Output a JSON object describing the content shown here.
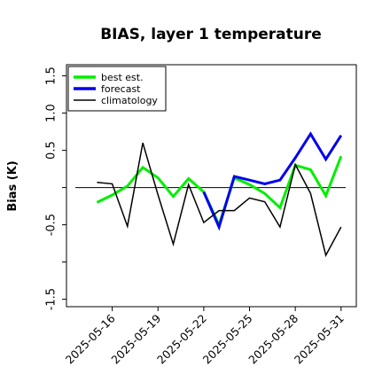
{
  "chart_data": {
    "type": "line",
    "title": "BIAS, layer 1 temperature",
    "xlabel": "",
    "ylabel": "Bias (K)",
    "ylim": [
      -1.6,
      1.65
    ],
    "xlim": [
      "2025-05-13",
      "2025-06-01"
    ],
    "yticks": [
      -1.5,
      -1.0,
      -0.5,
      0.0,
      0.5,
      1.0,
      1.5
    ],
    "ytick_labels": [
      "-1.5",
      "",
      "-0.5",
      "",
      "0.5",
      "1.0",
      "1.5"
    ],
    "xticks": [
      "2025-05-16",
      "2025-05-19",
      "2025-05-22",
      "2025-05-25",
      "2025-05-28",
      "2025-05-31"
    ],
    "xtick_colors": [
      "#000000",
      "#000000",
      "#228b22",
      "#000000",
      "#000000",
      "#000000"
    ],
    "zero_line": 0.0,
    "grid": false,
    "legend_position": "top-left",
    "series": [
      {
        "name": "best est.",
        "color": "#00ee00",
        "width": 3,
        "x": [
          "2025-05-15",
          "2025-05-16",
          "2025-05-17",
          "2025-05-18",
          "2025-05-19",
          "2025-05-20",
          "2025-05-21",
          "2025-05-22",
          "2025-05-23",
          "2025-05-24",
          "2025-05-25",
          "2025-05-26",
          "2025-05-27",
          "2025-05-28",
          "2025-05-29",
          "2025-05-30",
          "2025-05-31"
        ],
        "values": [
          -0.2,
          -0.1,
          0.02,
          0.27,
          0.13,
          -0.12,
          0.12,
          -0.06,
          -0.5,
          0.13,
          0.04,
          -0.08,
          -0.27,
          0.3,
          0.24,
          -0.11,
          0.42
        ]
      },
      {
        "name": "forecast",
        "color": "#0000ee",
        "width": 3,
        "x": [
          "2025-05-22",
          "2025-05-23",
          "2025-05-24",
          "2025-05-25",
          "2025-05-26",
          "2025-05-27",
          "2025-05-28",
          "2025-05-29",
          "2025-05-30",
          "2025-05-31"
        ],
        "values": [
          -0.06,
          -0.53,
          0.15,
          0.1,
          0.05,
          0.1,
          0.4,
          0.72,
          0.38,
          0.7
        ]
      },
      {
        "name": "climatology",
        "color": "#000000",
        "width": 1.5,
        "x": [
          "2025-05-15",
          "2025-05-16",
          "2025-05-17",
          "2025-05-18",
          "2025-05-19",
          "2025-05-20",
          "2025-05-21",
          "2025-05-22",
          "2025-05-23",
          "2025-05-24",
          "2025-05-25",
          "2025-05-26",
          "2025-05-27",
          "2025-05-28",
          "2025-05-29",
          "2025-05-30",
          "2025-05-31"
        ],
        "values": [
          0.07,
          0.05,
          -0.52,
          0.6,
          -0.1,
          -0.76,
          0.04,
          -0.47,
          -0.31,
          -0.31,
          -0.14,
          -0.19,
          -0.53,
          0.31,
          -0.08,
          -0.91,
          -0.53
        ]
      }
    ]
  }
}
